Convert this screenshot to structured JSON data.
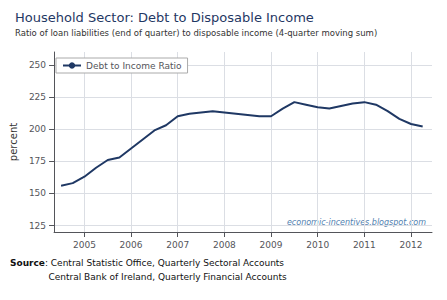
{
  "chart_data": {
    "type": "line",
    "title": "Household Sector: Debt to Disposable Income",
    "subtitle": "Ratio of loan liabilities (end of quarter) to disposable income (4-quarter moving sum)",
    "ylabel": "percent",
    "watermark": "economic-incentives.blogspot.com",
    "source": [
      "Source: Central Statistic Office, Quarterly Sectoral Accounts",
      "Central Bank of Ireland, Quarterly Financial Accounts"
    ],
    "x": [
      2004.5,
      2004.75,
      2005.0,
      2005.25,
      2005.5,
      2005.75,
      2006.0,
      2006.25,
      2006.5,
      2006.75,
      2007.0,
      2007.25,
      2007.5,
      2007.75,
      2008.0,
      2008.25,
      2008.5,
      2008.75,
      2009.0,
      2009.25,
      2009.5,
      2009.75,
      2010.0,
      2010.25,
      2010.5,
      2010.75,
      2011.0,
      2011.25,
      2011.5,
      2011.75,
      2012.0,
      2012.25
    ],
    "series": [
      {
        "name": "Debt to Income Ratio",
        "color": "#1f3864",
        "values": [
          156,
          158,
          163,
          170,
          176,
          178,
          185,
          192,
          199,
          203,
          210,
          212,
          213,
          214,
          213,
          212,
          211,
          210,
          210,
          216,
          221,
          219,
          217,
          216,
          218,
          220,
          221,
          219,
          214,
          208,
          204,
          202
        ]
      }
    ],
    "xlim": [
      2004.35,
      2012.45
    ],
    "xticks": [
      2005,
      2006,
      2007,
      2008,
      2009,
      2010,
      2011,
      2012
    ],
    "ylim": [
      120,
      260
    ],
    "yticks": [
      125,
      150,
      175,
      200,
      225,
      250
    ],
    "grid": true,
    "legend": "upper left"
  }
}
